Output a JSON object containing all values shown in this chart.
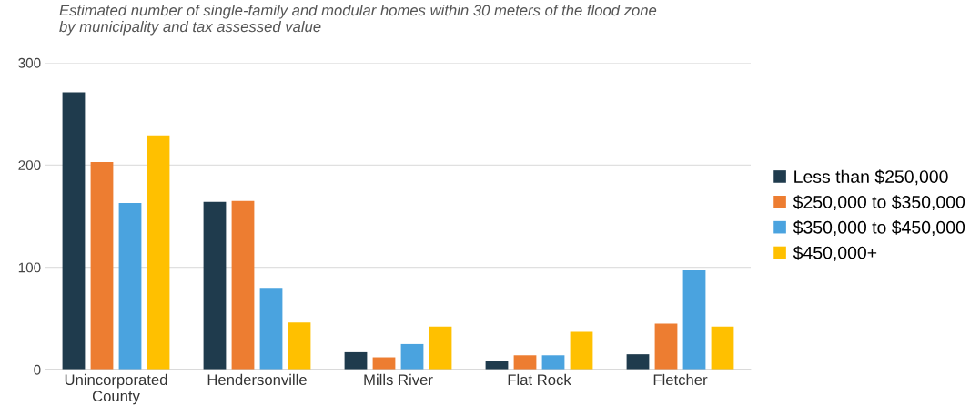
{
  "chart_data": {
    "type": "bar",
    "title": "Estimated number of single-family and modular homes within 30 meters of the flood zone\nby municipality and tax assessed value",
    "categories": [
      "Unincorporated\nCounty",
      "Hendersonville",
      "Mills River",
      "Flat Rock",
      "Fletcher"
    ],
    "series": [
      {
        "name": "Less than $250,000",
        "color": "#1f3b4d",
        "values": [
          271,
          164,
          17,
          8,
          15
        ]
      },
      {
        "name": "$250,000 to $350,000",
        "color": "#ed7d31",
        "values": [
          203,
          165,
          12,
          14,
          45
        ]
      },
      {
        "name": "$350,000 to $450,000",
        "color": "#4aa3df",
        "values": [
          163,
          80,
          25,
          14,
          97
        ]
      },
      {
        "name": "$450,000+",
        "color": "#ffc000",
        "values": [
          229,
          46,
          42,
          37,
          42
        ]
      }
    ],
    "ylim": [
      0,
      300
    ],
    "yticks": [
      0,
      100,
      200,
      300
    ],
    "grid": "y",
    "legend": "right"
  }
}
